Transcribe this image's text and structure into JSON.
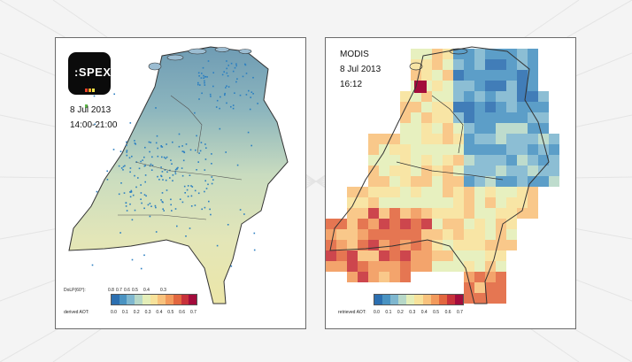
{
  "left_panel": {
    "logo_text": ":SPEX",
    "logo_bar_colors": [
      "#e8402a",
      "#f2a72b",
      "#f3e64a",
      "#5fb84b"
    ],
    "date": "8 Jul 2013",
    "time": "14:00-21:00",
    "colorbar_top_label": "DoLP(60°):",
    "colorbar_top_ticks": [
      "0.8",
      "0.7",
      "0.6",
      "0.5",
      "0.4",
      "0.3"
    ],
    "colorbar_bottom_label": "derived AOT:",
    "colorbar_bottom_ticks": [
      "0.0",
      "0.1",
      "0.2",
      "0.3",
      "0.4",
      "0.5",
      "0.6",
      "0.7"
    ]
  },
  "right_panel": {
    "title": "MODIS",
    "date": "8 Jul 2013",
    "time": "16:12",
    "colorbar_label": "retrieved AOT:",
    "colorbar_ticks": [
      "0.0",
      "0.1",
      "0.2",
      "0.3",
      "0.4",
      "0.5",
      "0.6",
      "0.7"
    ]
  },
  "colormap": [
    "#2c6fb0",
    "#4a93c2",
    "#7fb7cf",
    "#b7d8c8",
    "#e4eeb8",
    "#f7e29b",
    "#f8c27d",
    "#f29a5c",
    "#e2673f",
    "#c8323a",
    "#a30c3c"
  ],
  "colors": {
    "outline": "#333333",
    "background": "#f4f4f4",
    "panel_border": "#6b6b6b"
  }
}
